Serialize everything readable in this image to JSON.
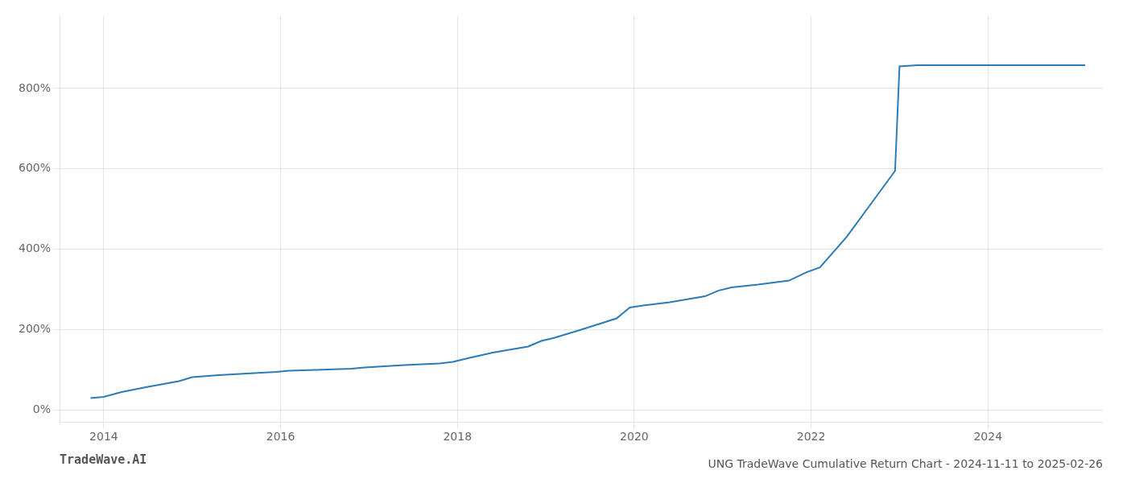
{
  "chart_data": {
    "type": "line",
    "title": "UNG TradeWave Cumulative Return Chart - 2024-11-11 to 2025-02-26",
    "annotations": [
      "TradeWave.AI"
    ],
    "x": [
      2013.85,
      2014.0,
      2014.2,
      2014.5,
      2014.85,
      2015.0,
      2015.3,
      2015.7,
      2015.95,
      2016.1,
      2016.4,
      2016.8,
      2016.95,
      2017.1,
      2017.4,
      2017.8,
      2017.95,
      2018.1,
      2018.4,
      2018.8,
      2018.95,
      2019.1,
      2019.4,
      2019.8,
      2019.95,
      2020.1,
      2020.4,
      2020.8,
      2020.95,
      2021.1,
      2021.4,
      2021.75,
      2021.95,
      2022.1,
      2022.4,
      2022.7,
      2022.95,
      2023.0,
      2023.2,
      2023.5,
      2023.8,
      2024.0,
      2024.3,
      2024.6,
      2024.9,
      2025.1
    ],
    "values": [
      30,
      33,
      45,
      58,
      72,
      82,
      87,
      92,
      95,
      98,
      100,
      103,
      106,
      108,
      112,
      116,
      120,
      128,
      143,
      158,
      172,
      180,
      200,
      228,
      255,
      260,
      268,
      283,
      297,
      305,
      312,
      322,
      343,
      355,
      430,
      520,
      595,
      855,
      858,
      858,
      858,
      858,
      858,
      858,
      858,
      858
    ],
    "color": "#2b7bb9",
    "xlim": [
      2013.5,
      2025.3
    ],
    "ylim": [
      -30,
      980
    ],
    "xticks": [
      2014,
      2016,
      2018,
      2020,
      2022,
      2024
    ],
    "yticks": [
      {
        "value": 0,
        "label": "0%"
      },
      {
        "value": 200,
        "label": "200%"
      },
      {
        "value": 400,
        "label": "400%"
      },
      {
        "value": 600,
        "label": "600%"
      },
      {
        "value": 800,
        "label": "800%"
      }
    ],
    "grid": true
  }
}
